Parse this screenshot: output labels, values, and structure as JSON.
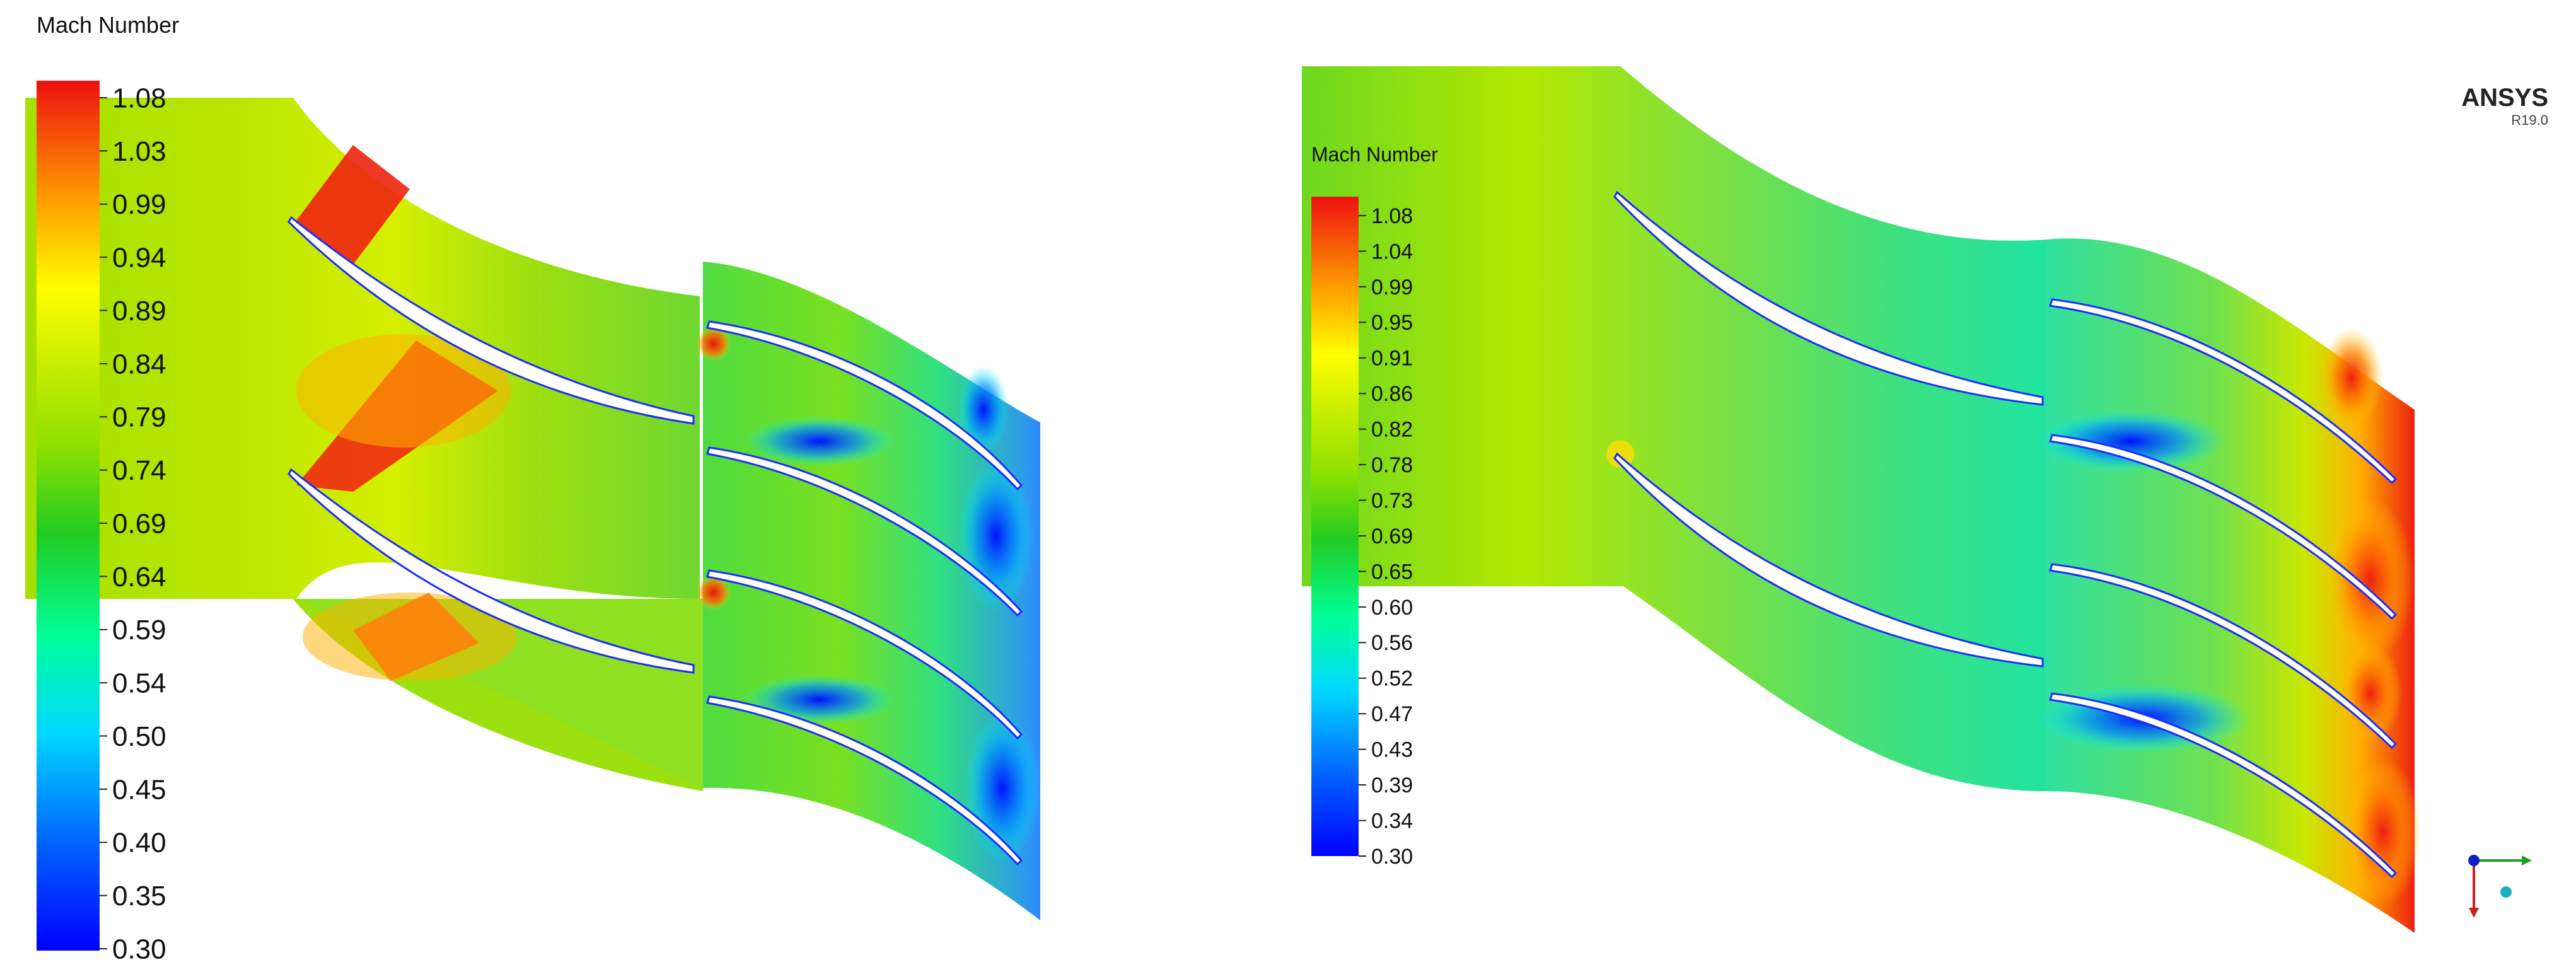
{
  "left_panel": {
    "legend": {
      "title": "Mach Number",
      "ticks": [
        "1.08",
        "1.03",
        "0.99",
        "0.94",
        "0.89",
        "0.84",
        "0.79",
        "0.74",
        "0.69",
        "0.64",
        "0.59",
        "0.54",
        "0.50",
        "0.45",
        "0.40",
        "0.35",
        "0.30"
      ]
    }
  },
  "right_panel": {
    "legend": {
      "title": "Mach Number",
      "ticks": [
        "1.08",
        "1.04",
        "0.99",
        "0.95",
        "0.91",
        "0.86",
        "0.82",
        "0.78",
        "0.73",
        "0.69",
        "0.65",
        "0.60",
        "0.56",
        "0.52",
        "0.47",
        "0.43",
        "0.39",
        "0.34",
        "0.30"
      ]
    },
    "branding": {
      "name": "ANSYS",
      "version": "R19.0"
    }
  },
  "colormap": [
    "#0000ff",
    "#00a2ff",
    "#00ffff",
    "#00ff8a",
    "#22cc22",
    "#8ee000",
    "#ccee00",
    "#ffff00",
    "#ffb000",
    "#ff5a00",
    "#ee1010"
  ]
}
